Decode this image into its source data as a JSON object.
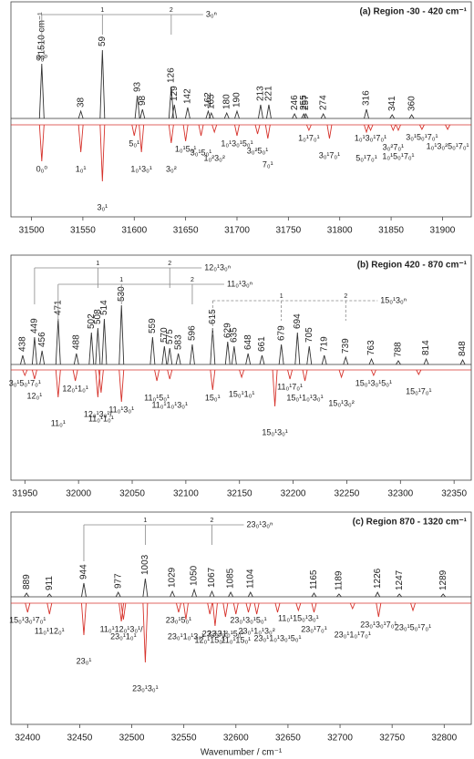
{
  "chart_data": [
    {
      "type": "spectrum",
      "title": "(a) Region -30 - 420 cm⁻¹",
      "xlim": [
        31480,
        31928
      ],
      "xticks": [
        31500,
        31550,
        31600,
        31650,
        31700,
        31750,
        31800,
        31850,
        31900
      ],
      "upper": {
        "color": "#333333",
        "x": [
          31510,
          31548,
          31569,
          31603,
          31608,
          31636,
          31639,
          31652,
          31672,
          31675,
          31690,
          31700,
          31723,
          31731,
          31756,
          31765,
          31767,
          31784,
          31826,
          31851,
          31870
        ],
        "values": [
          60,
          8,
          75,
          25,
          10,
          35,
          15,
          12,
          8,
          6,
          6,
          8,
          15,
          15,
          5,
          5,
          5,
          5,
          10,
          4,
          4
        ],
        "labels": [
          "31510 cm⁻¹",
          "38",
          "59",
          "93",
          "98",
          "126",
          "129",
          "142",
          "162",
          "165",
          "180",
          "190",
          "213",
          "221",
          "246",
          "255",
          "257",
          "274",
          "316",
          "341",
          "360"
        ]
      },
      "lower": {
        "color": "#d6322b",
        "x": [
          31510,
          31548,
          31569,
          31600,
          31607,
          31636,
          31650,
          31665,
          31678,
          31700,
          31720,
          31730,
          31770,
          31790,
          31826,
          31830,
          31852,
          31857,
          31880,
          31905
        ],
        "values": [
          40,
          30,
          62,
          12,
          30,
          20,
          18,
          12,
          8,
          12,
          10,
          15,
          6,
          15,
          8,
          6,
          6,
          6,
          5,
          5
        ],
        "labels": [
          "0₀⁰",
          "1₀¹",
          "3₀¹",
          "5₀¹",
          "1₀¹3₀¹",
          "3₀²",
          "1₀¹5₀¹",
          "3₀¹5₀¹",
          "1₀²3₀²",
          "1₀¹3₀¹5₀¹",
          "3₀²5₀¹",
          "7₀¹",
          "1₀¹7₀¹",
          "3₀¹7₀¹",
          "5₀¹7₀¹",
          "1₀¹3₀¹7₀¹",
          "3₀²7₀¹",
          "1₀¹5₀¹7₀¹",
          "3₀¹5₀¹7₀¹",
          "1₀¹3₀²5₀¹7₀¹"
        ]
      },
      "progressions": [
        {
          "label": "3₀ⁿ",
          "start_label": "0₀⁰",
          "x": [
            31510,
            31569,
            31636
          ],
          "steps": [
            "1",
            "2"
          ]
        }
      ]
    },
    {
      "type": "spectrum",
      "title": "(b) Region 420 - 870 cm⁻¹",
      "xlim": [
        31937,
        32366
      ],
      "xticks": [
        31950,
        32000,
        32050,
        32100,
        32150,
        32200,
        32250,
        32300,
        32350
      ],
      "upper": {
        "color": "#333333",
        "x": [
          31948,
          31959,
          31966,
          31981,
          31998,
          32012,
          32018,
          32024,
          32040,
          32069,
          32080,
          32085,
          32093,
          32106,
          32125,
          32139,
          32145,
          32158,
          32171,
          32189,
          32204,
          32215,
          32229,
          32249,
          32273,
          32298,
          32324,
          32358
        ],
        "values": [
          10,
          30,
          15,
          50,
          12,
          35,
          40,
          50,
          65,
          30,
          20,
          18,
          12,
          22,
          40,
          25,
          20,
          12,
          10,
          22,
          35,
          20,
          10,
          8,
          6,
          4,
          6,
          5
        ],
        "labels": [
          "438",
          "449",
          "456",
          "471",
          "488",
          "502",
          "508",
          "514",
          "530",
          "559",
          "570",
          "575",
          "583",
          "596",
          "615",
          "629",
          "635",
          "648",
          "661",
          "679",
          "694",
          "705",
          "719",
          "739",
          "763",
          "788",
          "814",
          "848"
        ]
      },
      "lower": {
        "color": "#d6322b",
        "x": [
          31950,
          31959,
          31981,
          31997,
          32018,
          32021,
          32040,
          32073,
          32085,
          32125,
          32152,
          32183,
          32197,
          32211,
          32245,
          32275,
          32317
        ],
        "values": [
          6,
          10,
          30,
          12,
          30,
          25,
          35,
          12,
          10,
          22,
          8,
          40,
          10,
          12,
          8,
          6,
          5
        ],
        "labels": [
          "3₀¹5₀¹7₀¹",
          "12₀¹",
          "11₀¹",
          "12₀¹1₀¹",
          "12₀¹3₀¹/",
          "11₀¹1₀¹",
          "11₀¹3₀¹",
          "11₀¹5₀¹",
          "11₀¹1₀¹3₀¹",
          "15₀¹",
          "15₀¹1₀¹",
          "15₀¹3₀¹",
          "11₀¹7₀¹",
          "15₀¹1₀¹3₀¹",
          "15₀¹3₀²",
          "15₀¹3₀¹5₀¹",
          "15₀¹7₀¹"
        ]
      },
      "progressions": [
        {
          "label": "12₀¹3₀ⁿ",
          "x": [
            31959,
            32018,
            32085
          ],
          "steps": [
            "1",
            "2"
          ]
        },
        {
          "label": "11₀¹3₀ⁿ",
          "x": [
            31981,
            32040,
            32106
          ],
          "steps": [
            "1",
            "2"
          ]
        },
        {
          "label": "15₀¹3₀ⁿ",
          "x": [
            32125,
            32189,
            32249
          ],
          "steps": [
            "1",
            "2"
          ],
          "dashed": true
        }
      ]
    },
    {
      "type": "spectrum",
      "title": "(c) Region 870 - 1320 cm⁻¹",
      "xlim": [
        32384,
        32826
      ],
      "xticks": [
        32400,
        32450,
        32500,
        32550,
        32600,
        32650,
        32700,
        32750,
        32800
      ],
      "xlabel": "Wavenumber / cm⁻¹",
      "upper": {
        "color": "#333333",
        "x": [
          32399,
          32421,
          32454,
          32487,
          32513,
          32539,
          32560,
          32577,
          32595,
          32614,
          32675,
          32699,
          32736,
          32757,
          32799
        ],
        "values": [
          4,
          3,
          15,
          5,
          20,
          6,
          8,
          6,
          5,
          5,
          4,
          3,
          5,
          3,
          3
        ],
        "labels": [
          "889",
          "911",
          "944",
          "977",
          "1003",
          "1029",
          "1050",
          "1067",
          "1085",
          "1104",
          "1165",
          "1189",
          "1226",
          "1247",
          "1289"
        ]
      },
      "lower": {
        "color": "#d6322b",
        "x": [
          32400,
          32421,
          32454,
          32490,
          32492,
          32513,
          32545,
          32552,
          32575,
          32580,
          32590,
          32600,
          32612,
          32620,
          32640,
          32660,
          32675,
          32712,
          32737,
          32770
        ],
        "values": [
          10,
          12,
          35,
          20,
          18,
          65,
          10,
          18,
          12,
          25,
          15,
          12,
          10,
          12,
          10,
          8,
          10,
          6,
          15,
          8
        ],
        "labels": [
          "15₀¹3₀¹7₀¹",
          "11₀¹12₀¹",
          "23₀¹",
          "11₀¹12₀¹3₀¹/",
          "23₀¹1₀¹",
          "23₀¹3₀¹",
          "23₀¹5₀¹",
          "23₀¹1₀¹3₀¹",
          "12₀¹15₀¹",
          "23₀¹3₀²",
          "23₀¹1₀¹5₀¹",
          "11₀¹15₀¹",
          "23₀¹3₀¹5₀¹",
          "23₀¹1₀¹3₀²",
          "23₀¹1₀¹3₀¹5₀¹",
          "11₀¹15₀¹3₀¹",
          "23₀¹7₀¹",
          "23₀¹1₀¹7₀¹",
          "23₀¹3₀¹7₀¹",
          "23₀¹5₀¹7₀¹"
        ]
      },
      "progressions": [
        {
          "label": "23₀¹3₀ⁿ",
          "x": [
            32454,
            32513,
            32577
          ],
          "steps": [
            "1",
            "2"
          ]
        }
      ]
    }
  ]
}
